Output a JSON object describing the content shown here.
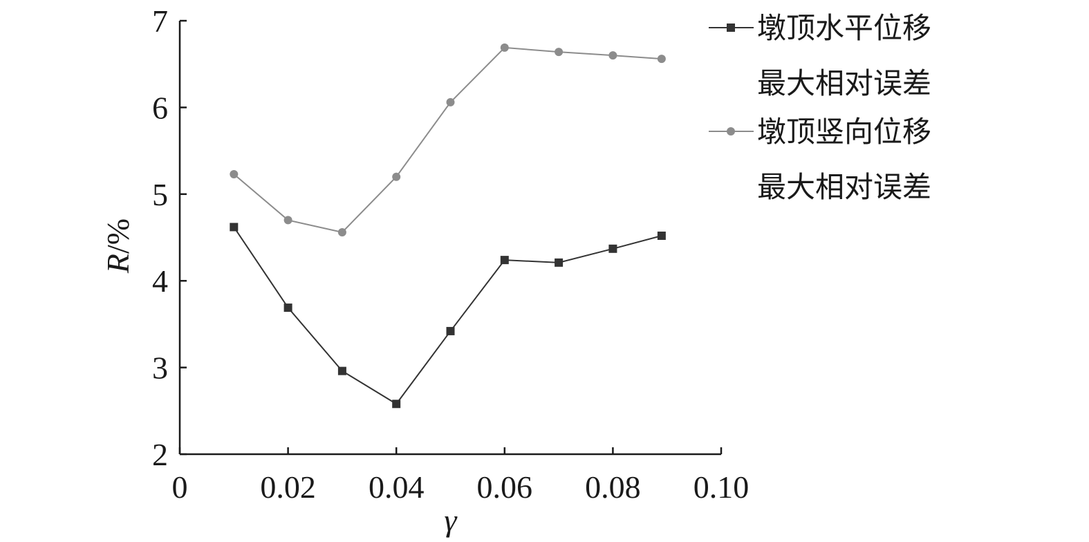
{
  "chart_data": {
    "type": "line",
    "title": "",
    "xlabel": "γ",
    "ylabel": "R/%",
    "ylabel_italic_part": "R",
    "ylabel_rest": "/%",
    "xlim": [
      0,
      0.1
    ],
    "ylim": [
      2,
      7
    ],
    "x_ticks": [
      0,
      0.02,
      0.04,
      0.06,
      0.08,
      0.1
    ],
    "x_tick_labels": [
      "0",
      "0.02",
      "0.04",
      "0.06",
      "0.08",
      "0.10"
    ],
    "y_ticks": [
      2,
      3,
      4,
      5,
      6,
      7
    ],
    "y_tick_labels": [
      "2",
      "3",
      "4",
      "5",
      "6",
      "7"
    ],
    "grid": false,
    "legend_position": "top-right",
    "x": [
      0.01,
      0.02,
      0.03,
      0.04,
      0.05,
      0.06,
      0.07,
      0.08,
      0.089
    ],
    "series": [
      {
        "name": "墩顶水平位移最大相对误差",
        "legend_lines": [
          "墩顶水平位移",
          "最大相对误差"
        ],
        "marker": "square",
        "color": "#333333",
        "values": [
          4.62,
          3.69,
          2.96,
          2.58,
          3.42,
          4.24,
          4.21,
          4.37,
          4.52
        ]
      },
      {
        "name": "墩顶竖向位移最大相对误差",
        "legend_lines": [
          "墩顶竖向位移",
          "最大相对误差"
        ],
        "marker": "circle",
        "color": "#8c8c8c",
        "values": [
          5.23,
          4.7,
          4.56,
          5.2,
          6.06,
          6.69,
          6.64,
          6.6,
          6.56
        ]
      }
    ]
  }
}
